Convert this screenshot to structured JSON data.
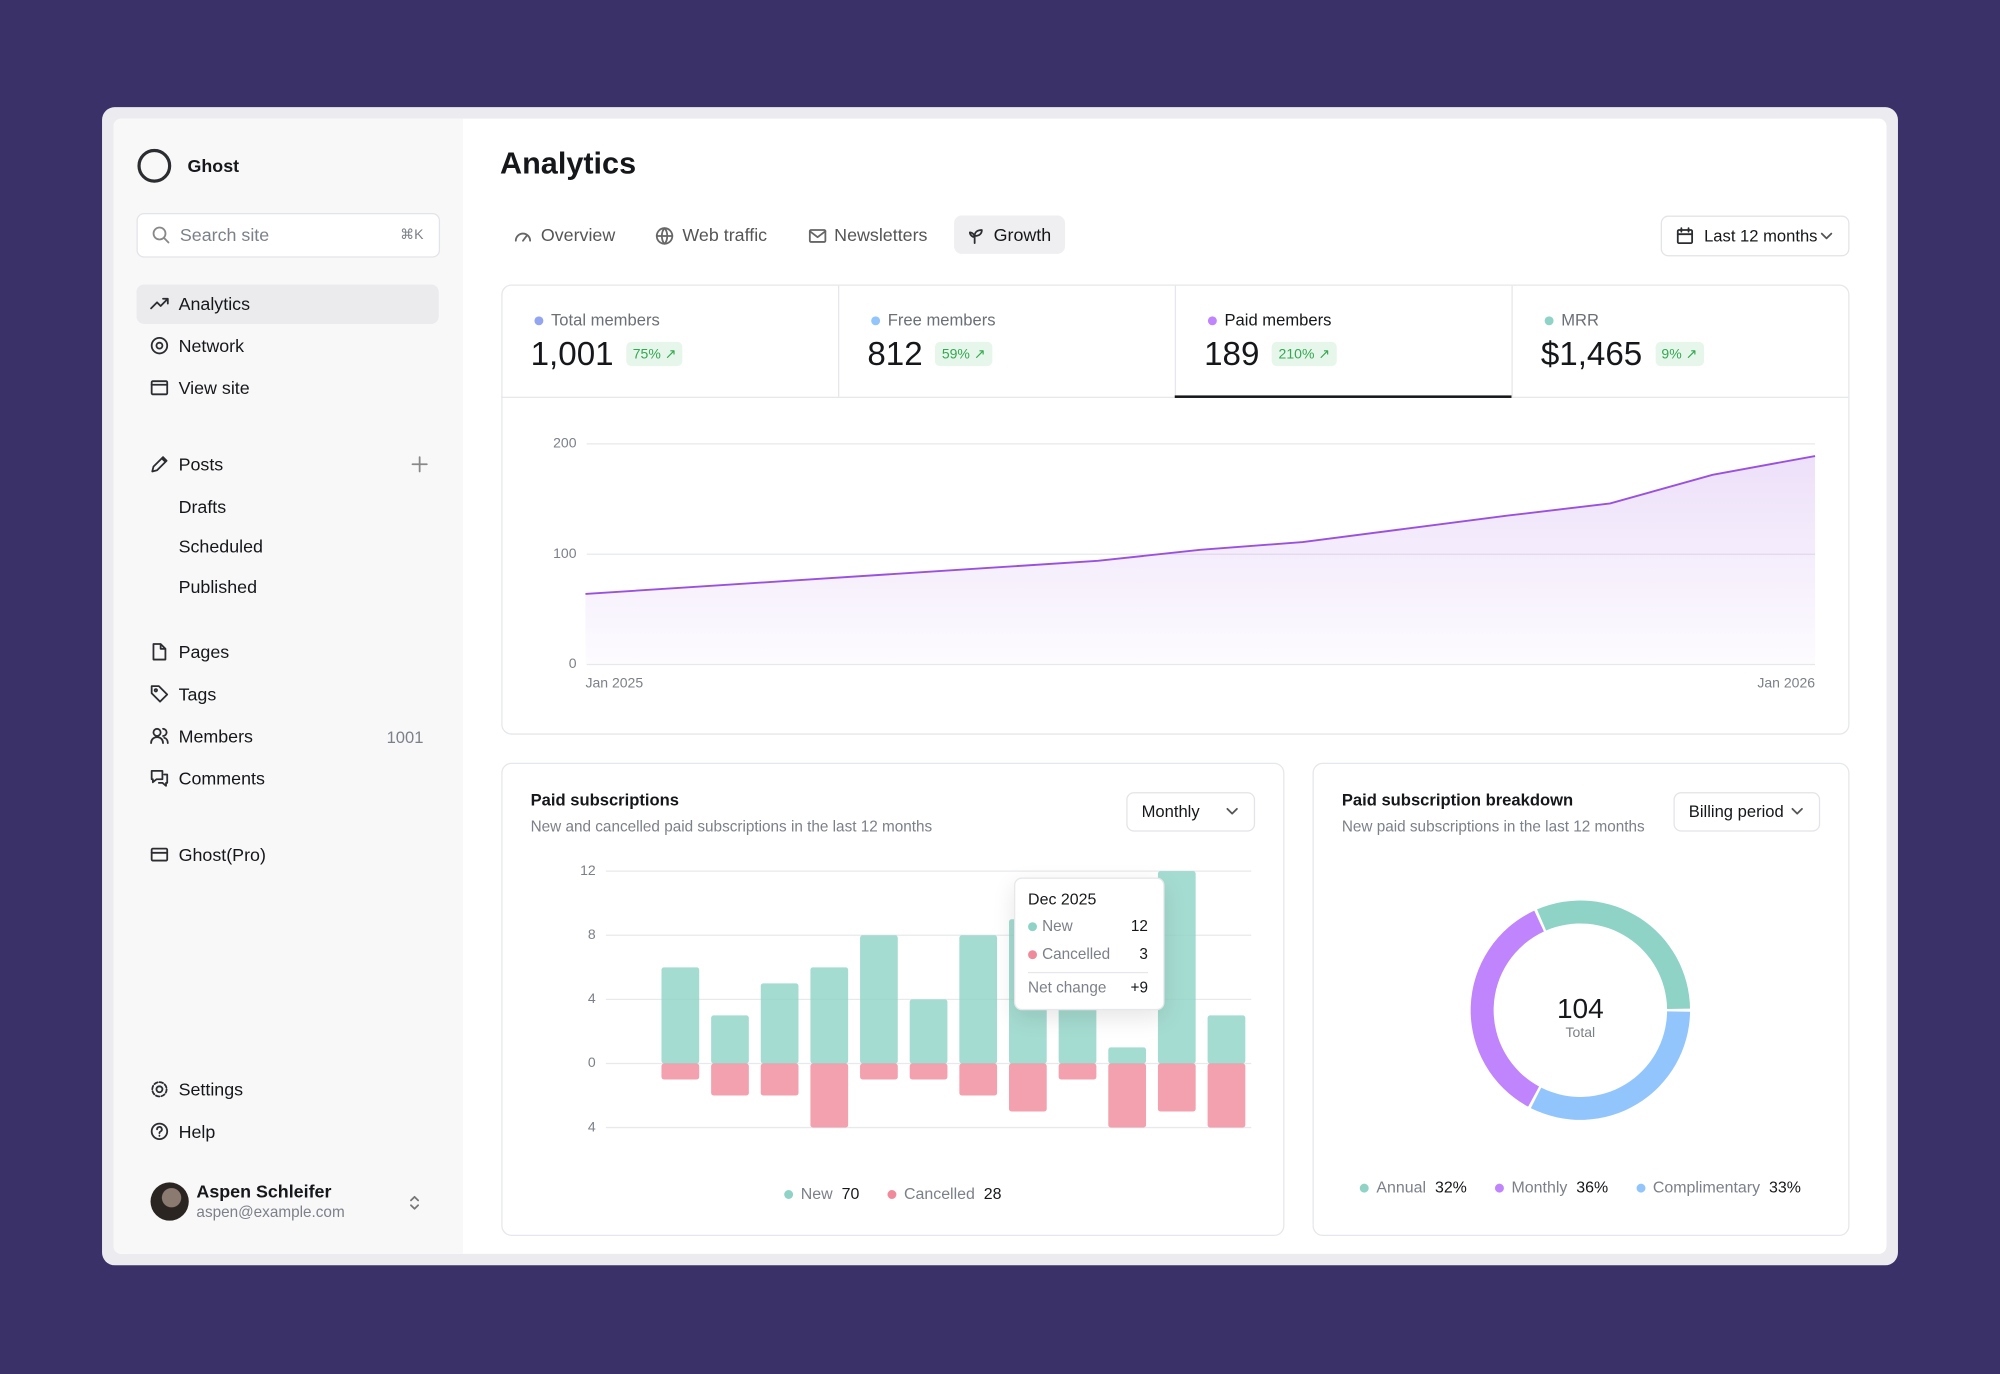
{
  "sidebar": {
    "brand": "Ghost",
    "search": "Search site",
    "shortcut": "⌘K",
    "nav": [
      "Analytics",
      "Network",
      "View site"
    ],
    "posts": {
      "label": "Posts",
      "items": [
        "Drafts",
        "Scheduled",
        "Published"
      ]
    },
    "sections": [
      "Pages",
      "Tags",
      "Members",
      "Comments"
    ],
    "members_count": 1001,
    "pro": "Ghost(Pro)",
    "footer": [
      "Settings",
      "Help"
    ],
    "user": {
      "name": "Aspen Schleifer",
      "email": "aspen@example.com"
    }
  },
  "header": {
    "title": "Analytics",
    "tabs": [
      "Overview",
      "Web traffic",
      "Newsletters",
      "Growth"
    ],
    "date_range": "Last 12 months"
  },
  "stats": [
    {
      "label": "Total members",
      "value": "1,001",
      "change": "75%",
      "color": "#93a5f0"
    },
    {
      "label": "Free members",
      "value": "812",
      "change": "59%",
      "color": "#93c5fd"
    },
    {
      "label": "Paid members",
      "value": "189",
      "change": "210%",
      "color": "#c084fc"
    },
    {
      "label": "MRR",
      "value": "$1,465",
      "change": "9%",
      "color": "#8fd3c6"
    }
  ],
  "chart_data": [
    {
      "type": "area",
      "categories": [
        "Jan 2025",
        null,
        null,
        null,
        null,
        null,
        null,
        null,
        null,
        null,
        null,
        null,
        "Jan 2026"
      ],
      "values": [
        64,
        70,
        76,
        82,
        88,
        94,
        104,
        111,
        123,
        135,
        146,
        172,
        189
      ],
      "color": "#9b51e0",
      "ylim": [
        0,
        200
      ],
      "yticks": [
        0,
        100,
        200
      ],
      "grid": true
    },
    {
      "type": "bar",
      "title": "Paid subscriptions",
      "subtitle": "New and cancelled paid subscriptions in the last 12 months",
      "period": "Monthly",
      "ylim": [
        -4,
        12
      ],
      "yticks": [
        12,
        8,
        4,
        0,
        {
          "value": -4,
          "label": "4"
        }
      ],
      "grid": true,
      "series": [
        {
          "name": "New",
          "color": "#8fd3c6",
          "values": [
            0,
            6,
            3,
            5,
            6,
            8,
            4,
            8,
            9,
            5,
            1,
            12,
            3
          ],
          "total": 70
        },
        {
          "name": "Cancelled",
          "color": "#f08a9a",
          "values": [
            0,
            1,
            2,
            2,
            4,
            1,
            1,
            2,
            3,
            1,
            4,
            3,
            4
          ],
          "total": 28
        }
      ],
      "tooltip": {
        "title": "Dec 2025",
        "net_label": "Net change",
        "net_value": "+9"
      }
    },
    {
      "type": "pie",
      "title": "Paid subscription breakdown",
      "subtitle": "New paid subscriptions in the last 12 months",
      "control": "Billing period",
      "total": 104,
      "total_label": "Total",
      "categories": [
        "Annual",
        "Monthly",
        "Complimentary"
      ],
      "values": [
        32,
        36,
        33
      ],
      "value_labels": [
        "32%",
        "36%",
        "33%"
      ],
      "colors": [
        "#8fd3c6",
        "#c084fc",
        "#93c5fd"
      ]
    }
  ]
}
